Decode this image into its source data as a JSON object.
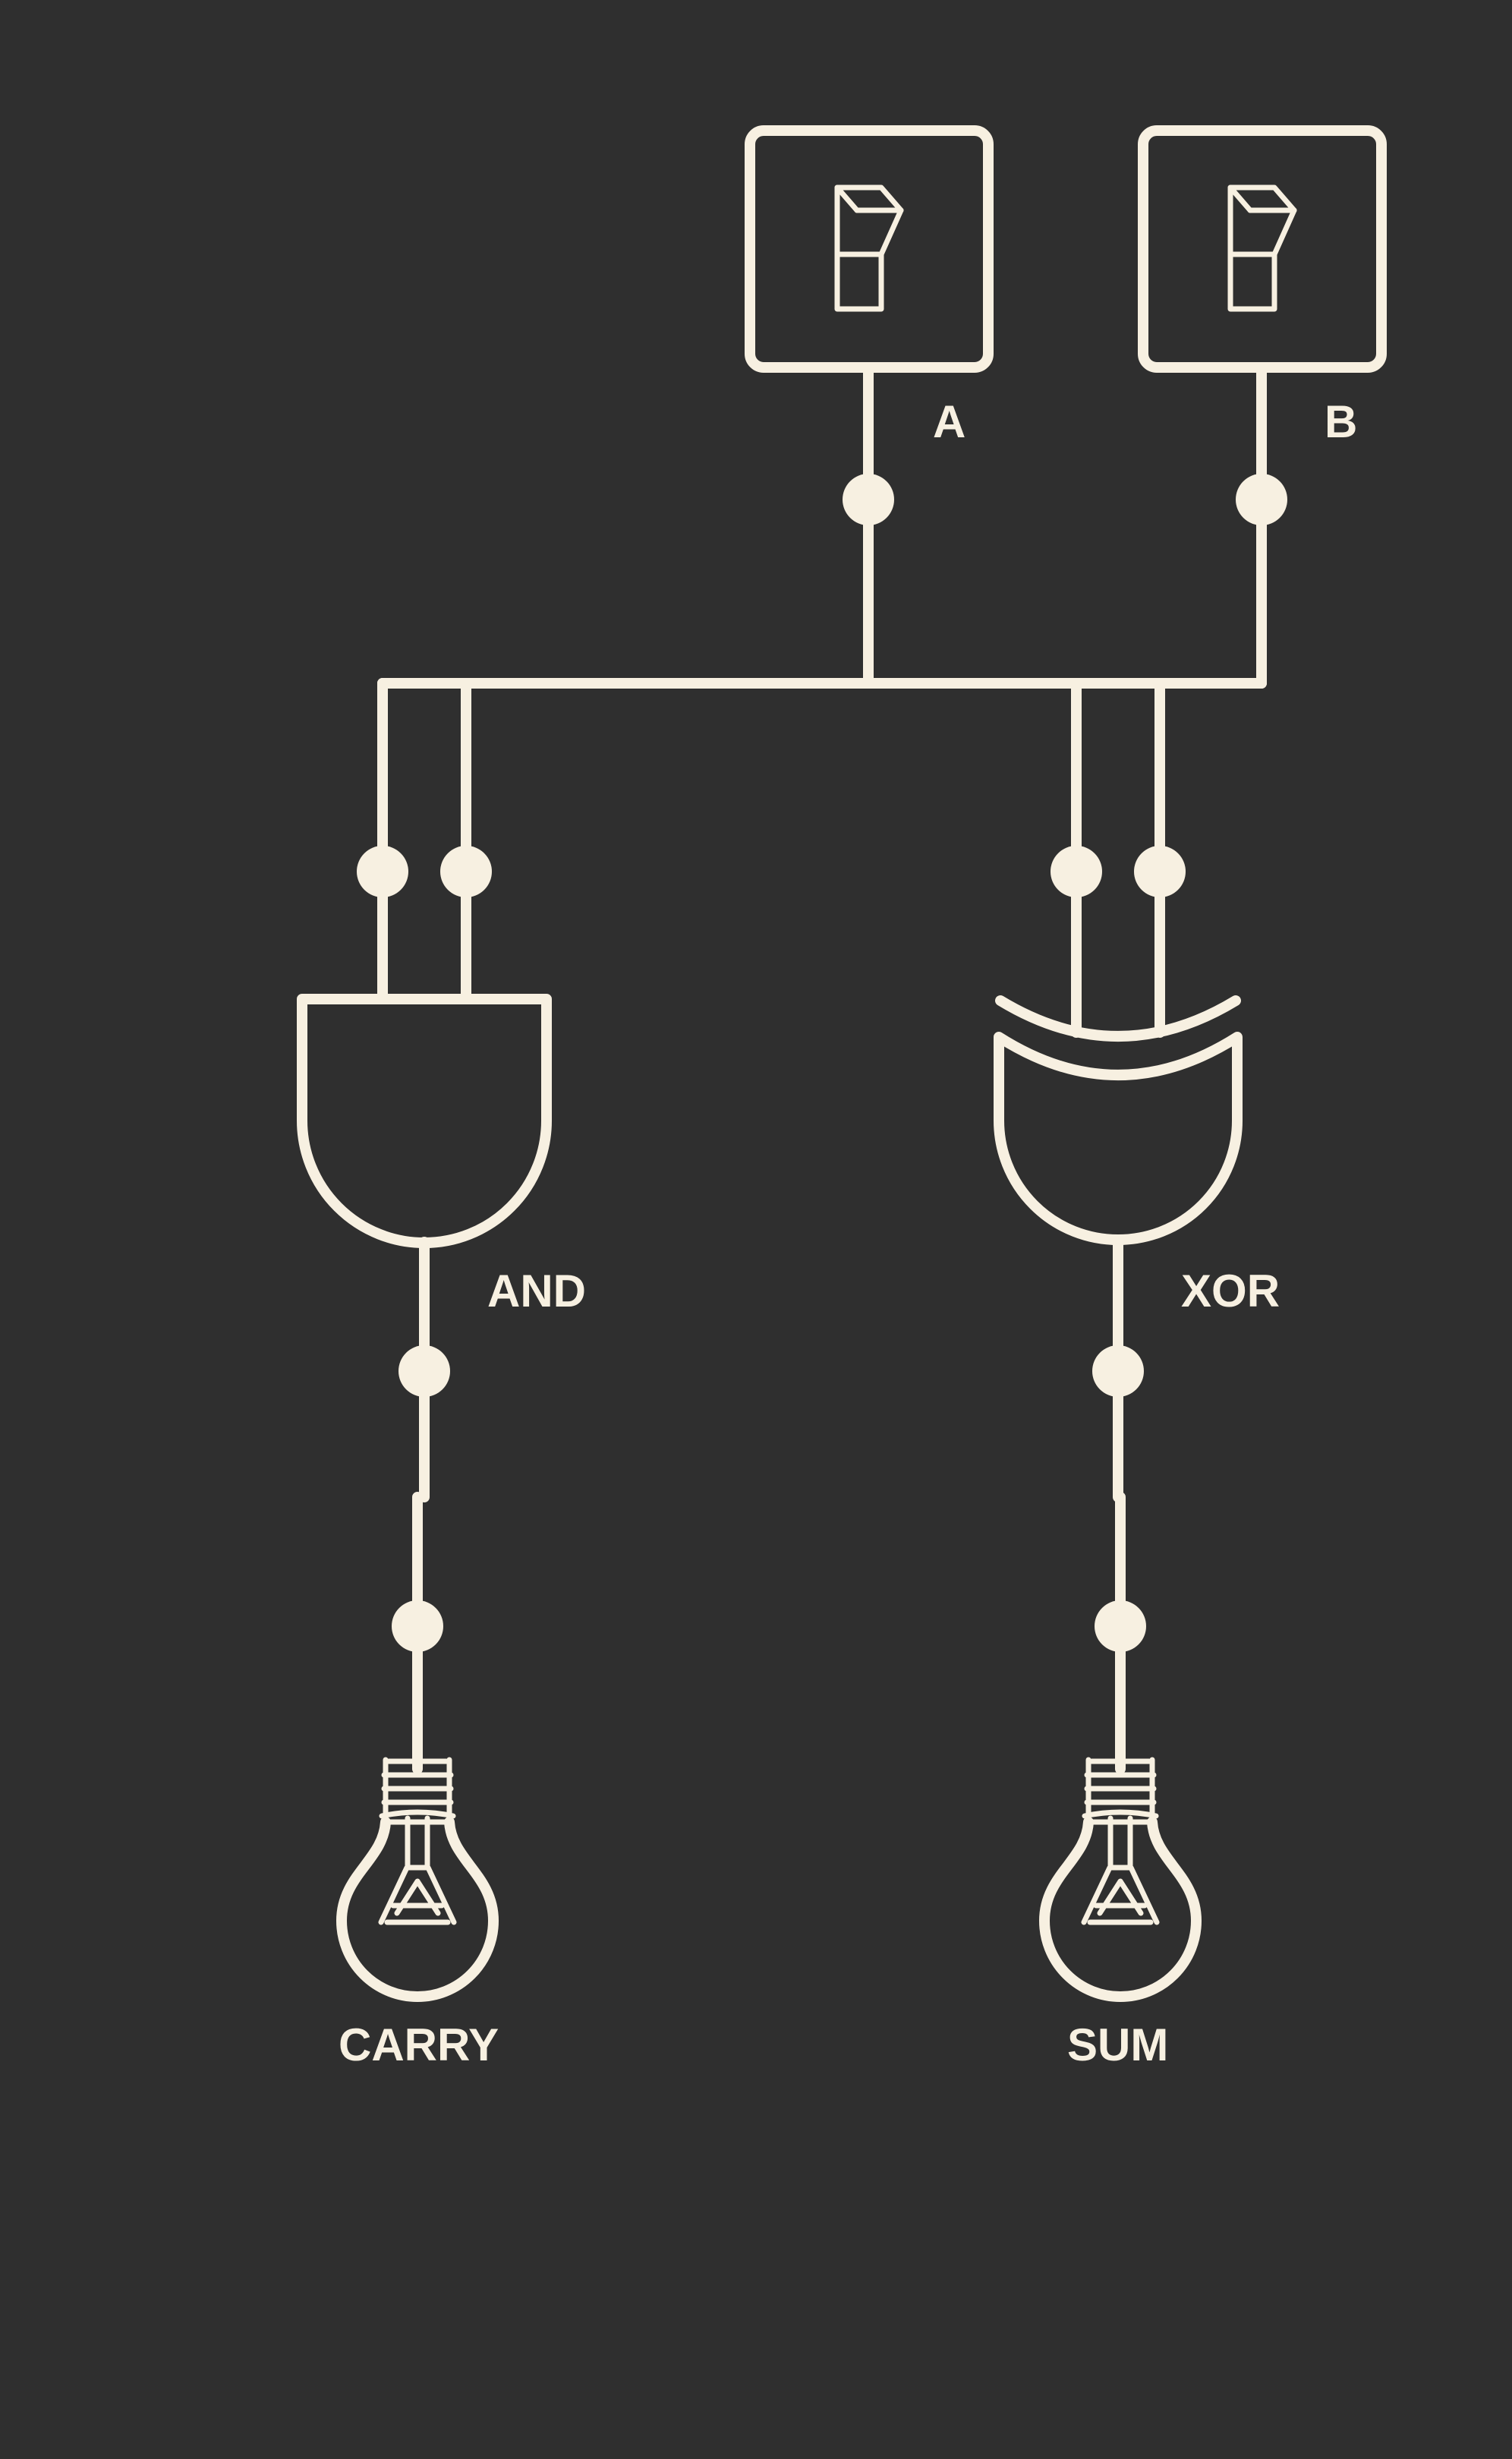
{
  "labels": {
    "switch_a": "A",
    "switch_b": "B",
    "and_gate": "AND",
    "xor_gate": "XOR",
    "carry": "CARRY",
    "sum": "SUM"
  },
  "colors": {
    "background": "#2f2f2f",
    "line": "#f7f0e1"
  },
  "icons": {
    "switch": "toggle-switch-icon",
    "bulb": "light-bulb-icon"
  }
}
